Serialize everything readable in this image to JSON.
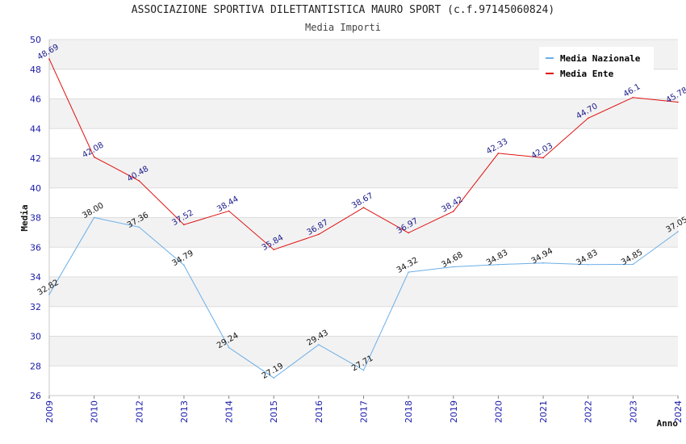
{
  "chart_data": {
    "type": "line",
    "title": "ASSOCIAZIONE SPORTIVA DILETTANTISTICA MAURO SPORT (c.f.97145060824)",
    "subtitle": "Media Importi",
    "xlabel": "Anno",
    "ylabel": "Media",
    "ylim": [
      26,
      50
    ],
    "yticks": [
      26,
      28,
      30,
      32,
      34,
      36,
      38,
      40,
      42,
      44,
      46,
      48,
      50
    ],
    "categories": [
      "2009",
      "2010",
      "2012",
      "2013",
      "2014",
      "2015",
      "2016",
      "2017",
      "2018",
      "2019",
      "2020",
      "2021",
      "2022",
      "2023",
      "2024"
    ],
    "series": [
      {
        "name": "Media Nazionale",
        "color": "#6aaee8",
        "label_color": "#111111",
        "values": [
          32.82,
          38.0,
          37.36,
          34.79,
          29.24,
          27.19,
          29.43,
          27.71,
          34.32,
          34.68,
          34.83,
          34.94,
          34.83,
          34.85,
          37.05
        ],
        "labels": [
          "32.82",
          "38.00",
          "37.36",
          "34.79",
          "29.24",
          "27.19",
          "29.43",
          "27.71",
          "34.32",
          "34.68",
          "34.83",
          "34.94",
          "34.83",
          "34.85",
          "37.05"
        ]
      },
      {
        "name": "Media Ente",
        "color": "#e01010",
        "label_color": "#1a1a8a",
        "values": [
          48.69,
          42.08,
          40.48,
          37.52,
          38.44,
          35.84,
          36.87,
          38.67,
          36.97,
          38.42,
          42.33,
          42.03,
          44.7,
          46.1,
          45.78
        ],
        "labels": [
          "48.69",
          "42.08",
          "40.48",
          "37.52",
          "38.44",
          "35.84",
          "36.87",
          "38.67",
          "36.97",
          "38.42",
          "42.33",
          "42.03",
          "44.70",
          "46.1",
          "45.78"
        ]
      }
    ],
    "grid": true,
    "legend_position": "top-right"
  }
}
